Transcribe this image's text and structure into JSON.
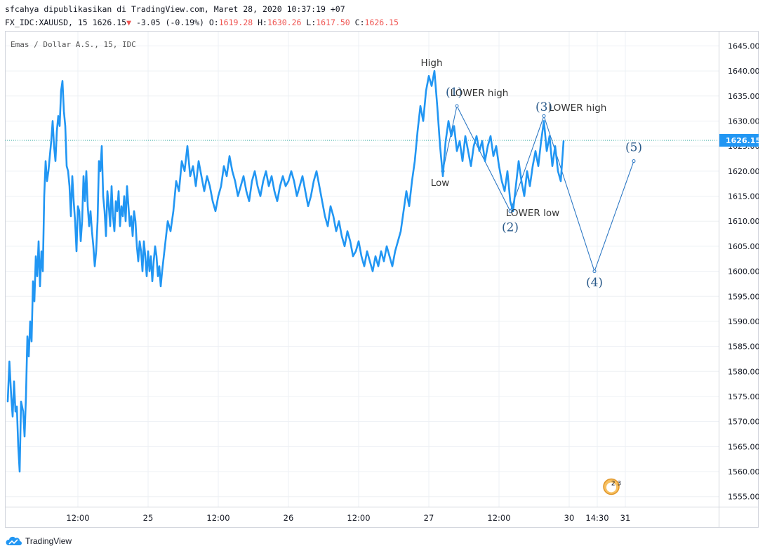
{
  "header": {
    "published": "sfcahya dipublikasikan di TradingView.com, Maret 28, 2020 10:37:19 +07",
    "symbol": "FX_IDC:XAUUSD, 15",
    "last": "1626.15",
    "change_arrow": "▼",
    "change": "-3.05 (-0.19%)",
    "o_label": "O:",
    "o": "1619.28",
    "h_label": "H:",
    "h": "1630.26",
    "l_label": "L:",
    "l": "1617.50",
    "c_label": "C:",
    "c": "1626.15"
  },
  "footer": {
    "brand": "TradingView",
    "logo_icon": "tradingview-cloud-icon"
  },
  "colors": {
    "price": "#2196f3",
    "price_label_bg": "#2196f3",
    "negative": "#ef5350",
    "annotation": "#2a5a8a",
    "grid": "#e6e9ef"
  },
  "chart_data": {
    "type": "line",
    "title": "Emas / Dollar A.S., 15, IDC",
    "ylim": [
      1553,
      1648
    ],
    "y_ticks": [
      1555,
      1560,
      1565,
      1570,
      1575,
      1580,
      1585,
      1590,
      1595,
      1600,
      1605,
      1610,
      1615,
      1620,
      1625,
      1630,
      1635,
      1640,
      1645
    ],
    "y_tick_labels": [
      "1555.00",
      "1560.00",
      "1565.00",
      "1570.00",
      "1575.00",
      "1580.00",
      "1585.00",
      "1590.00",
      "1595.00",
      "1600.00",
      "1605.00",
      "1610.00",
      "1615.00",
      "1620.00",
      "1625.00",
      "1630.00",
      "1635.00",
      "1640.00",
      "1645.00"
    ],
    "x_ticks": [
      {
        "label": "12:00",
        "t": 0.5
      },
      {
        "label": "25",
        "t": 1.0
      },
      {
        "label": "12:00",
        "t": 1.5
      },
      {
        "label": "26",
        "t": 2.0
      },
      {
        "label": "12:00",
        "t": 2.5
      },
      {
        "label": "27",
        "t": 3.0
      },
      {
        "label": "12:00",
        "t": 3.5
      },
      {
        "label": "30",
        "t": 4.0
      },
      {
        "label": "14:30",
        "t": 4.2
      },
      {
        "label": "31",
        "t": 4.4
      }
    ],
    "last_price": 1626.15,
    "last_price_label": "1626.15",
    "series": [
      {
        "values": [
          [
            0.0,
            1574
          ],
          [
            0.012,
            1582
          ],
          [
            0.025,
            1575
          ],
          [
            0.035,
            1571
          ],
          [
            0.045,
            1578
          ],
          [
            0.055,
            1572
          ],
          [
            0.065,
            1573
          ],
          [
            0.075,
            1565
          ],
          [
            0.085,
            1560
          ],
          [
            0.095,
            1574
          ],
          [
            0.11,
            1572
          ],
          [
            0.12,
            1567
          ],
          [
            0.13,
            1575
          ],
          [
            0.14,
            1587
          ],
          [
            0.15,
            1583
          ],
          [
            0.16,
            1590
          ],
          [
            0.17,
            1586
          ],
          [
            0.18,
            1598
          ],
          [
            0.19,
            1594
          ],
          [
            0.2,
            1603
          ],
          [
            0.21,
            1599
          ],
          [
            0.22,
            1606
          ],
          [
            0.23,
            1597
          ],
          [
            0.24,
            1604
          ],
          [
            0.25,
            1600
          ],
          [
            0.26,
            1615
          ],
          [
            0.27,
            1622
          ],
          [
            0.28,
            1618
          ],
          [
            0.29,
            1620
          ],
          [
            0.3,
            1623
          ],
          [
            0.31,
            1626
          ],
          [
            0.32,
            1630
          ],
          [
            0.33,
            1625
          ],
          [
            0.34,
            1622
          ],
          [
            0.35,
            1628
          ],
          [
            0.36,
            1631
          ],
          [
            0.37,
            1629
          ],
          [
            0.38,
            1636
          ],
          [
            0.39,
            1638
          ],
          [
            0.4,
            1632
          ],
          [
            0.41,
            1629
          ],
          [
            0.42,
            1621
          ],
          [
            0.43,
            1620
          ],
          [
            0.44,
            1617
          ],
          [
            0.45,
            1611
          ],
          [
            0.46,
            1619
          ],
          [
            0.47,
            1614
          ],
          [
            0.48,
            1610
          ],
          [
            0.49,
            1604
          ],
          [
            0.5,
            1613
          ],
          [
            0.51,
            1612
          ],
          [
            0.52,
            1606
          ],
          [
            0.53,
            1610
          ],
          [
            0.54,
            1619
          ],
          [
            0.55,
            1614
          ],
          [
            0.56,
            1620
          ],
          [
            0.57,
            1613
          ],
          [
            0.58,
            1609
          ],
          [
            0.59,
            1612
          ],
          [
            0.6,
            1608
          ],
          [
            0.61,
            1605
          ],
          [
            0.62,
            1601
          ],
          [
            0.63,
            1604
          ],
          [
            0.64,
            1610
          ],
          [
            0.65,
            1622
          ],
          [
            0.66,
            1620
          ],
          [
            0.67,
            1625
          ],
          [
            0.68,
            1615
          ],
          [
            0.69,
            1612
          ],
          [
            0.7,
            1607
          ],
          [
            0.71,
            1616
          ],
          [
            0.72,
            1613
          ],
          [
            0.73,
            1609
          ],
          [
            0.74,
            1617
          ],
          [
            0.75,
            1611
          ],
          [
            0.76,
            1608
          ],
          [
            0.77,
            1614
          ],
          [
            0.78,
            1612
          ],
          [
            0.79,
            1616
          ],
          [
            0.8,
            1609
          ],
          [
            0.81,
            1613
          ],
          [
            0.82,
            1611
          ],
          [
            0.83,
            1615
          ],
          [
            0.84,
            1610
          ],
          [
            0.85,
            1617
          ],
          [
            0.86,
            1613
          ],
          [
            0.87,
            1609
          ],
          [
            0.88,
            1611
          ],
          [
            0.89,
            1607
          ],
          [
            0.9,
            1612
          ],
          [
            0.91,
            1610
          ],
          [
            0.92,
            1605
          ],
          [
            0.93,
            1602
          ],
          [
            0.94,
            1606
          ],
          [
            0.95,
            1604
          ],
          [
            0.96,
            1600
          ],
          [
            0.97,
            1606
          ],
          [
            0.98,
            1603
          ],
          [
            0.99,
            1599
          ],
          [
            1.0,
            1604
          ],
          [
            1.01,
            1600
          ],
          [
            1.02,
            1603
          ],
          [
            1.03,
            1598
          ],
          [
            1.04,
            1602
          ],
          [
            1.05,
            1605
          ],
          [
            1.06,
            1603
          ],
          [
            1.07,
            1599
          ],
          [
            1.08,
            1601
          ],
          [
            1.09,
            1597
          ],
          [
            1.1,
            1600
          ],
          [
            1.12,
            1605
          ],
          [
            1.14,
            1610
          ],
          [
            1.16,
            1608
          ],
          [
            1.18,
            1612
          ],
          [
            1.2,
            1618
          ],
          [
            1.22,
            1616
          ],
          [
            1.24,
            1622
          ],
          [
            1.26,
            1620
          ],
          [
            1.28,
            1625
          ],
          [
            1.3,
            1619
          ],
          [
            1.32,
            1621
          ],
          [
            1.34,
            1617
          ],
          [
            1.36,
            1622
          ],
          [
            1.38,
            1619
          ],
          [
            1.4,
            1616
          ],
          [
            1.42,
            1619
          ],
          [
            1.44,
            1617
          ],
          [
            1.46,
            1614
          ],
          [
            1.48,
            1612
          ],
          [
            1.5,
            1615
          ],
          [
            1.52,
            1617
          ],
          [
            1.54,
            1621
          ],
          [
            1.56,
            1619
          ],
          [
            1.58,
            1623
          ],
          [
            1.6,
            1620
          ],
          [
            1.62,
            1618
          ],
          [
            1.64,
            1615
          ],
          [
            1.66,
            1617
          ],
          [
            1.68,
            1619
          ],
          [
            1.7,
            1616
          ],
          [
            1.72,
            1614
          ],
          [
            1.74,
            1618
          ],
          [
            1.76,
            1620
          ],
          [
            1.78,
            1617
          ],
          [
            1.8,
            1615
          ],
          [
            1.82,
            1618
          ],
          [
            1.84,
            1620
          ],
          [
            1.86,
            1617
          ],
          [
            1.88,
            1619
          ],
          [
            1.9,
            1616
          ],
          [
            1.92,
            1614
          ],
          [
            1.94,
            1617
          ],
          [
            1.96,
            1619
          ],
          [
            1.98,
            1617
          ],
          [
            2.0,
            1618
          ],
          [
            2.02,
            1620
          ],
          [
            2.04,
            1618
          ],
          [
            2.06,
            1615
          ],
          [
            2.08,
            1617
          ],
          [
            2.1,
            1619
          ],
          [
            2.12,
            1616
          ],
          [
            2.14,
            1613
          ],
          [
            2.16,
            1615
          ],
          [
            2.18,
            1618
          ],
          [
            2.2,
            1620
          ],
          [
            2.22,
            1617
          ],
          [
            2.24,
            1614
          ],
          [
            2.26,
            1611
          ],
          [
            2.28,
            1609
          ],
          [
            2.3,
            1613
          ],
          [
            2.32,
            1611
          ],
          [
            2.34,
            1608
          ],
          [
            2.36,
            1610
          ],
          [
            2.38,
            1607
          ],
          [
            2.4,
            1605
          ],
          [
            2.42,
            1608
          ],
          [
            2.44,
            1606
          ],
          [
            2.46,
            1603
          ],
          [
            2.48,
            1604
          ],
          [
            2.5,
            1606
          ],
          [
            2.52,
            1603
          ],
          [
            2.54,
            1601
          ],
          [
            2.56,
            1604
          ],
          [
            2.58,
            1602
          ],
          [
            2.6,
            1600
          ],
          [
            2.62,
            1603
          ],
          [
            2.64,
            1601
          ],
          [
            2.66,
            1604
          ],
          [
            2.68,
            1602
          ],
          [
            2.7,
            1605
          ],
          [
            2.72,
            1603
          ],
          [
            2.74,
            1601
          ],
          [
            2.76,
            1604
          ],
          [
            2.78,
            1606
          ],
          [
            2.8,
            1608
          ],
          [
            2.82,
            1612
          ],
          [
            2.84,
            1616
          ],
          [
            2.86,
            1613
          ],
          [
            2.88,
            1618
          ],
          [
            2.9,
            1622
          ],
          [
            2.92,
            1628
          ],
          [
            2.94,
            1633
          ],
          [
            2.96,
            1630
          ],
          [
            2.98,
            1636
          ],
          [
            3.0,
            1639
          ],
          [
            3.02,
            1637
          ],
          [
            3.04,
            1640
          ],
          [
            3.06,
            1633
          ],
          [
            3.08,
            1625
          ],
          [
            3.1,
            1619
          ],
          [
            3.12,
            1626
          ],
          [
            3.14,
            1630
          ],
          [
            3.16,
            1627
          ],
          [
            3.18,
            1629
          ],
          [
            3.2,
            1624
          ],
          [
            3.22,
            1626
          ],
          [
            3.24,
            1622
          ],
          [
            3.26,
            1627
          ],
          [
            3.28,
            1624
          ],
          [
            3.3,
            1621
          ],
          [
            3.32,
            1625
          ],
          [
            3.34,
            1627
          ],
          [
            3.36,
            1624
          ],
          [
            3.38,
            1626
          ],
          [
            3.4,
            1622
          ],
          [
            3.42,
            1625
          ],
          [
            3.44,
            1627
          ],
          [
            3.46,
            1623
          ],
          [
            3.48,
            1625
          ],
          [
            3.5,
            1621
          ],
          [
            3.52,
            1618
          ],
          [
            3.54,
            1616
          ],
          [
            3.56,
            1620
          ],
          [
            3.58,
            1614
          ],
          [
            3.6,
            1612
          ],
          [
            3.62,
            1617
          ],
          [
            3.64,
            1622
          ],
          [
            3.66,
            1618
          ],
          [
            3.68,
            1615
          ],
          [
            3.7,
            1620
          ],
          [
            3.72,
            1617
          ],
          [
            3.74,
            1621
          ],
          [
            3.76,
            1624
          ],
          [
            3.78,
            1621
          ],
          [
            3.8,
            1626
          ],
          [
            3.82,
            1630
          ],
          [
            3.84,
            1624
          ],
          [
            3.86,
            1627
          ],
          [
            3.88,
            1621
          ],
          [
            3.9,
            1625
          ],
          [
            3.92,
            1620
          ],
          [
            3.94,
            1618
          ],
          [
            3.96,
            1626
          ]
        ]
      }
    ],
    "wave_path": [
      [
        3.1,
        1620
      ],
      [
        3.2,
        1633
      ],
      [
        3.58,
        1612
      ],
      [
        3.82,
        1631
      ],
      [
        4.18,
        1600
      ],
      [
        4.46,
        1622
      ]
    ],
    "annotations": [
      {
        "text": "High",
        "t": 3.02,
        "y": 1641,
        "kind": "label"
      },
      {
        "text": "(1)",
        "t": 3.18,
        "y": 1635,
        "kind": "wave"
      },
      {
        "text": "LOWER high",
        "t": 3.36,
        "y": 1635,
        "kind": "label"
      },
      {
        "text": "Low",
        "t": 3.08,
        "y": 1617,
        "kind": "label"
      },
      {
        "text": "(3)",
        "t": 3.82,
        "y": 1632,
        "kind": "wave"
      },
      {
        "text": "LOWER high",
        "t": 4.06,
        "y": 1632,
        "kind": "label"
      },
      {
        "text": "(2)",
        "t": 3.58,
        "y": 1608,
        "kind": "wave"
      },
      {
        "text": "LOWER low",
        "t": 3.74,
        "y": 1611,
        "kind": "label"
      },
      {
        "text": "(4)",
        "t": 4.18,
        "y": 1597,
        "kind": "wave"
      },
      {
        "text": "(5)",
        "t": 4.46,
        "y": 1624,
        "kind": "wave"
      }
    ],
    "badge_text": "2 3"
  }
}
